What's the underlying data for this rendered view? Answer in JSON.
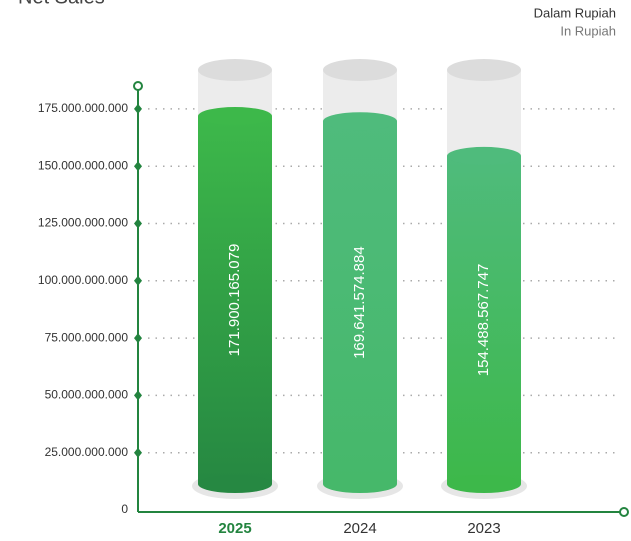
{
  "chart_data": {
    "type": "bar",
    "title": "Net Sales",
    "subtitle": "Dalam Rupiah",
    "subtitle_en": "In Rupiah",
    "categories": [
      "2025",
      "2024",
      "2023"
    ],
    "values": [
      171900165079,
      169641574884,
      154488567747
    ],
    "value_labels": [
      "171.900.165.079",
      "169.641.574.884",
      "154.488.567.747"
    ],
    "colors": [
      [
        "#3db84a",
        "#268842"
      ],
      [
        "#4fbb7c",
        "#46b86a"
      ],
      [
        "#4fbb7c",
        "#3db84a"
      ]
    ],
    "ylim": [
      0,
      185000000000
    ],
    "yticks": [
      0,
      {
        "value": 25000000000,
        "label": "25.000.000.000"
      },
      {
        "value": 50000000000,
        "label": "50.000.000.000"
      },
      {
        "value": 75000000000,
        "label": "75.000.000.000"
      },
      {
        "value": 100000000000,
        "label": "100.000.000.000"
      },
      {
        "value": 125000000000,
        "label": "125.000.000.000"
      },
      {
        "value": 150000000000,
        "label": "150.000.000.000"
      },
      {
        "value": 175000000000,
        "label": "175.000.000.000"
      }
    ],
    "grid": true
  }
}
